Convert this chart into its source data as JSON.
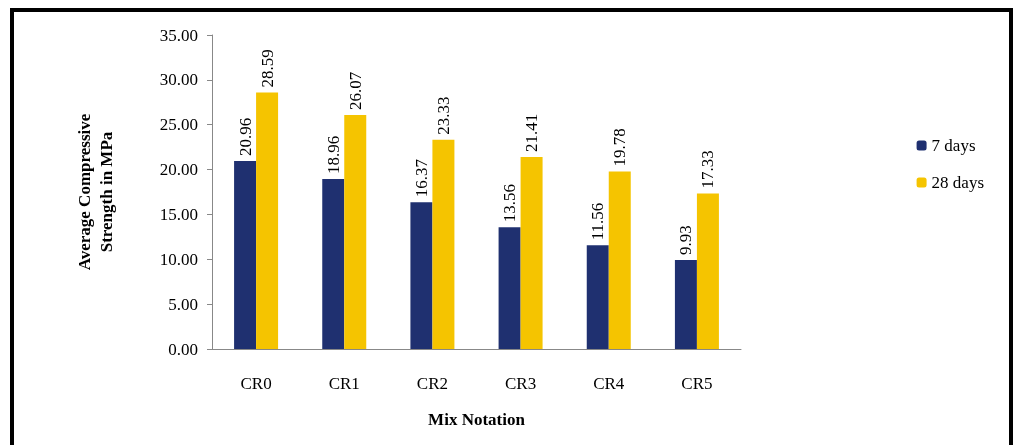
{
  "chart_data": {
    "type": "bar",
    "xlabel": "Mix Notation",
    "ylabel": "Average Compressive\nStrength in MPa",
    "categories": [
      "CR0",
      "CR1",
      "CR2",
      "CR3",
      "CR4",
      "CR5"
    ],
    "series": [
      {
        "name": "7 days",
        "color": "#1f3070",
        "values": [
          20.96,
          18.96,
          16.37,
          13.56,
          11.56,
          9.93
        ]
      },
      {
        "name": "28 days",
        "color": "#f5c400",
        "values": [
          28.59,
          26.07,
          23.33,
          21.41,
          19.78,
          17.33
        ]
      }
    ],
    "ylim": [
      0,
      35
    ],
    "yticks": [
      {
        "value": 0,
        "label": "0.00"
      },
      {
        "value": 5,
        "label": "5.00"
      },
      {
        "value": 10,
        "label": "10.00"
      },
      {
        "value": 15,
        "label": "15.00"
      },
      {
        "value": 20,
        "label": "20.00"
      },
      {
        "value": 25,
        "label": "25.00"
      },
      {
        "value": 30,
        "label": "30.00"
      },
      {
        "value": 35,
        "label": "35.00"
      }
    ],
    "grid": false,
    "legend": "right",
    "data_labels": true
  }
}
